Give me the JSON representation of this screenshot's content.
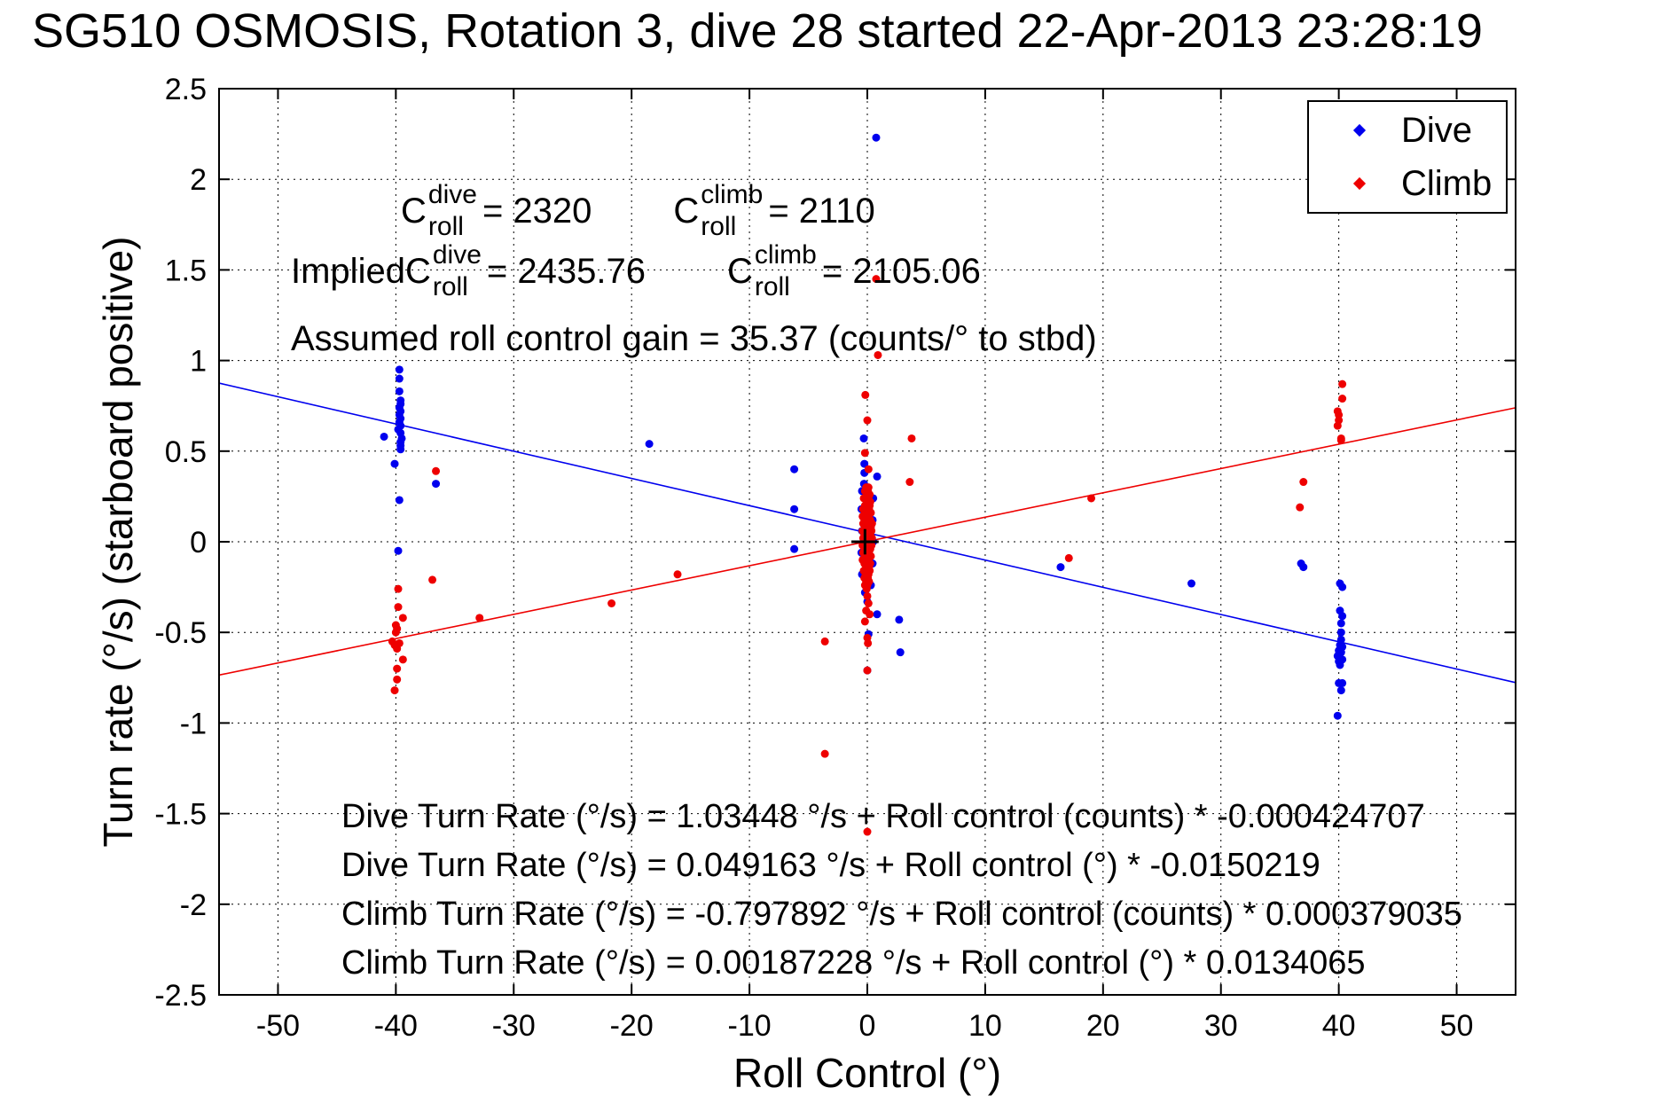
{
  "title": "SG510 OSMOSIS, Rotation 3, dive 28 started 22-Apr-2013 23:28:19",
  "legend": {
    "entries": [
      {
        "label": "Dive",
        "color": "#0000ee"
      },
      {
        "label": "Climb",
        "color": "#ee0000"
      }
    ]
  },
  "annotations": {
    "c_values": {
      "items": [
        {
          "prefix": "",
          "base": "C",
          "sup": "dive",
          "sub": "roll",
          "value": "= 2320"
        },
        {
          "prefix": "",
          "base": "C",
          "sup": "climb",
          "sub": "roll",
          "value": "= 2110"
        }
      ]
    },
    "implied": {
      "items": [
        {
          "prefix": "Implied ",
          "base": "C",
          "sup": "dive",
          "sub": "roll",
          "value": "= 2435.76"
        },
        {
          "prefix": "",
          "base": "C",
          "sup": "climb",
          "sub": "roll",
          "value": "= 2105.06"
        }
      ]
    },
    "gain_line": "Assumed roll control gain = 35.37 (counts/° to stbd)",
    "equations": [
      "Dive Turn Rate (°/s) = 1.03448 °/s + Roll control (counts) * -0.000424707",
      "Dive Turn Rate (°/s) = 0.049163 °/s + Roll control (°) * -0.0150219",
      "Climb Turn Rate (°/s) = -0.797892 °/s + Roll control (counts) * 0.000379035",
      "Climb Turn Rate (°/s) = 0.00187228 °/s + Roll control (°) * 0.0134065"
    ]
  },
  "chart_data": {
    "type": "scatter",
    "title": "SG510 OSMOSIS, Rotation 3, dive 28 started 22-Apr-2013 23:28:19",
    "xlabel": "Roll Control (°)",
    "ylabel": "Turn rate (°/s) (starboard positive)",
    "xlim": [
      -55,
      55
    ],
    "ylim": [
      -2.5,
      2.5
    ],
    "x_ticks": [
      -50,
      -40,
      -30,
      -20,
      -10,
      0,
      10,
      20,
      30,
      40,
      50
    ],
    "y_ticks": [
      -2.5,
      -2,
      -1.5,
      -1,
      -0.5,
      0,
      0.5,
      1,
      1.5,
      2,
      2.5
    ],
    "grid": true,
    "legend_position": "top-right",
    "fit_lines": [
      {
        "name": "dive-fit",
        "color": "#0000ee",
        "intercept": 0.049163,
        "slope": -0.0150219
      },
      {
        "name": "climb-fit",
        "color": "#ee0000",
        "intercept": 0.00187228,
        "slope": 0.0134065
      }
    ],
    "origin_marker": {
      "x": -0.2,
      "y": 0.0,
      "half_width": 1.15,
      "half_height": 0.07,
      "color": "#000000"
    },
    "series": [
      {
        "name": "Dive",
        "color": "#0000ee",
        "points": [
          [
            -39.7,
            0.95
          ],
          [
            -39.7,
            0.9
          ],
          [
            -39.7,
            0.83
          ],
          [
            -39.6,
            0.78
          ],
          [
            -39.6,
            0.76
          ],
          [
            -39.7,
            0.74
          ],
          [
            -39.6,
            0.72
          ],
          [
            -39.7,
            0.7
          ],
          [
            -39.6,
            0.68
          ],
          [
            -39.7,
            0.66
          ],
          [
            -39.6,
            0.64
          ],
          [
            -39.8,
            0.62
          ],
          [
            -39.6,
            0.6
          ],
          [
            -41.0,
            0.58
          ],
          [
            -39.5,
            0.57
          ],
          [
            -39.6,
            0.55
          ],
          [
            -39.6,
            0.53
          ],
          [
            -39.6,
            0.51
          ],
          [
            -40.1,
            0.43
          ],
          [
            -39.7,
            0.23
          ],
          [
            -39.8,
            -0.05
          ],
          [
            -36.6,
            0.32
          ],
          [
            -18.5,
            0.54
          ],
          [
            -6.2,
            0.4
          ],
          [
            -6.2,
            0.18
          ],
          [
            -6.2,
            -0.04
          ],
          [
            0.75,
            2.23
          ],
          [
            -0.3,
            0.57
          ],
          [
            -0.25,
            0.43
          ],
          [
            -0.25,
            0.38
          ],
          [
            0.83,
            0.36
          ],
          [
            -0.28,
            0.32
          ],
          [
            -0.45,
            0.28
          ],
          [
            0.5,
            0.24
          ],
          [
            -0.5,
            0.18
          ],
          [
            0.45,
            0.12
          ],
          [
            -0.45,
            0.06
          ],
          [
            0.5,
            0.0
          ],
          [
            -0.5,
            -0.06
          ],
          [
            0.45,
            -0.12
          ],
          [
            -0.45,
            -0.18
          ],
          [
            0.3,
            -0.24
          ],
          [
            -0.2,
            -0.28
          ],
          [
            0.0,
            -0.33
          ],
          [
            0.83,
            -0.4
          ],
          [
            2.7,
            -0.43
          ],
          [
            0.1,
            -0.51
          ],
          [
            2.8,
            -0.61
          ],
          [
            0.0,
            -0.71
          ],
          [
            16.4,
            -0.14
          ],
          [
            27.5,
            -0.23
          ],
          [
            36.8,
            -0.12
          ],
          [
            37.0,
            -0.14
          ],
          [
            40.1,
            -0.23
          ],
          [
            40.3,
            -0.25
          ],
          [
            40.1,
            -0.38
          ],
          [
            40.3,
            -0.41
          ],
          [
            40.2,
            -0.45
          ],
          [
            40.2,
            -0.5
          ],
          [
            40.2,
            -0.54
          ],
          [
            40.1,
            -0.57
          ],
          [
            40.3,
            -0.58
          ],
          [
            40.0,
            -0.6
          ],
          [
            40.2,
            -0.61
          ],
          [
            39.9,
            -0.63
          ],
          [
            40.1,
            -0.64
          ],
          [
            40.3,
            -0.65
          ],
          [
            40.0,
            -0.66
          ],
          [
            40.1,
            -0.68
          ],
          [
            40.0,
            -0.78
          ],
          [
            40.3,
            -0.78
          ],
          [
            40.2,
            -0.82
          ],
          [
            39.9,
            -0.96
          ]
        ]
      },
      {
        "name": "Climb",
        "color": "#ee0000",
        "points": [
          [
            -36.6,
            0.39
          ],
          [
            -36.9,
            -0.21
          ],
          [
            -39.8,
            -0.26
          ],
          [
            -39.8,
            -0.36
          ],
          [
            -39.4,
            -0.42
          ],
          [
            -32.9,
            -0.42
          ],
          [
            -40.0,
            -0.46
          ],
          [
            -39.9,
            -0.48
          ],
          [
            -40.0,
            -0.5
          ],
          [
            -40.3,
            -0.55
          ],
          [
            -39.7,
            -0.56
          ],
          [
            -40.1,
            -0.57
          ],
          [
            -39.9,
            -0.59
          ],
          [
            -39.4,
            -0.65
          ],
          [
            -39.9,
            -0.7
          ],
          [
            -39.9,
            -0.76
          ],
          [
            -40.1,
            -0.82
          ],
          [
            -21.7,
            -0.34
          ],
          [
            -16.1,
            -0.18
          ],
          [
            -3.6,
            -0.55
          ],
          [
            -3.6,
            -1.17
          ],
          [
            0.0,
            -1.6
          ],
          [
            0.75,
            1.45
          ],
          [
            0.9,
            1.03
          ],
          [
            -0.17,
            0.81
          ],
          [
            0.0,
            0.67
          ],
          [
            3.76,
            0.57
          ],
          [
            -0.2,
            0.49
          ],
          [
            0.1,
            0.4
          ],
          [
            3.6,
            0.33
          ],
          [
            -0.1,
            0.3
          ],
          [
            0.1,
            0.3
          ],
          [
            -0.2,
            0.28
          ],
          [
            0.05,
            0.28
          ],
          [
            0.0,
            0.26
          ],
          [
            0.2,
            0.26
          ],
          [
            -0.3,
            0.24
          ],
          [
            0.1,
            0.24
          ],
          [
            -0.05,
            0.22
          ],
          [
            0.25,
            0.22
          ],
          [
            -0.2,
            0.2
          ],
          [
            0.0,
            0.2
          ],
          [
            0.2,
            0.2
          ],
          [
            -0.35,
            0.18
          ],
          [
            -0.1,
            0.18
          ],
          [
            0.15,
            0.18
          ],
          [
            -0.2,
            0.16
          ],
          [
            0.05,
            0.16
          ],
          [
            0.3,
            0.16
          ],
          [
            -0.4,
            0.14
          ],
          [
            -0.15,
            0.14
          ],
          [
            0.1,
            0.14
          ],
          [
            -0.25,
            0.12
          ],
          [
            0.0,
            0.12
          ],
          [
            0.25,
            0.12
          ],
          [
            -0.35,
            0.1
          ],
          [
            -0.1,
            0.1
          ],
          [
            0.15,
            0.1
          ],
          [
            0.4,
            0.1
          ],
          [
            -0.2,
            0.08
          ],
          [
            0.05,
            0.08
          ],
          [
            0.3,
            0.08
          ],
          [
            -0.4,
            0.06
          ],
          [
            -0.15,
            0.06
          ],
          [
            0.1,
            0.06
          ],
          [
            0.35,
            0.06
          ],
          [
            -0.25,
            0.04
          ],
          [
            0.0,
            0.04
          ],
          [
            0.25,
            0.04
          ],
          [
            -0.35,
            0.02
          ],
          [
            -0.1,
            0.02
          ],
          [
            0.15,
            0.02
          ],
          [
            0.4,
            0.02
          ],
          [
            -0.2,
            0.0
          ],
          [
            0.05,
            0.0
          ],
          [
            0.3,
            0.0
          ],
          [
            -0.4,
            -0.02
          ],
          [
            -0.15,
            -0.02
          ],
          [
            0.1,
            -0.02
          ],
          [
            0.35,
            -0.02
          ],
          [
            -0.25,
            -0.04
          ],
          [
            0.0,
            -0.04
          ],
          [
            0.25,
            -0.04
          ],
          [
            -0.35,
            -0.06
          ],
          [
            -0.1,
            -0.06
          ],
          [
            0.15,
            -0.06
          ],
          [
            -0.2,
            -0.08
          ],
          [
            0.05,
            -0.08
          ],
          [
            0.3,
            -0.08
          ],
          [
            -0.4,
            -0.1
          ],
          [
            -0.15,
            -0.1
          ],
          [
            0.1,
            -0.1
          ],
          [
            -0.25,
            -0.12
          ],
          [
            0.0,
            -0.12
          ],
          [
            0.25,
            -0.12
          ],
          [
            -0.1,
            -0.14
          ],
          [
            0.15,
            -0.14
          ],
          [
            -0.3,
            -0.16
          ],
          [
            0.0,
            -0.16
          ],
          [
            0.2,
            -0.16
          ],
          [
            -0.15,
            -0.18
          ],
          [
            0.1,
            -0.18
          ],
          [
            -0.25,
            -0.2
          ],
          [
            0.05,
            -0.2
          ],
          [
            -0.1,
            -0.22
          ],
          [
            0.15,
            -0.22
          ],
          [
            -0.2,
            -0.24
          ],
          [
            0.0,
            -0.24
          ],
          [
            -0.05,
            -0.26
          ],
          [
            0.0,
            -0.3
          ],
          [
            0.1,
            -0.34
          ],
          [
            -0.1,
            -0.38
          ],
          [
            0.2,
            -0.4
          ],
          [
            -0.2,
            -0.44
          ],
          [
            0.0,
            -0.53
          ],
          [
            0.05,
            -0.56
          ],
          [
            0.0,
            -0.71
          ],
          [
            19.0,
            0.24
          ],
          [
            17.1,
            -0.09
          ],
          [
            40.3,
            0.87
          ],
          [
            40.3,
            0.79
          ],
          [
            39.9,
            0.72
          ],
          [
            40.0,
            0.7
          ],
          [
            40.0,
            0.67
          ],
          [
            39.9,
            0.64
          ],
          [
            40.2,
            0.57
          ],
          [
            40.2,
            0.56
          ],
          [
            37.0,
            0.33
          ],
          [
            36.7,
            0.19
          ]
        ]
      }
    ]
  }
}
